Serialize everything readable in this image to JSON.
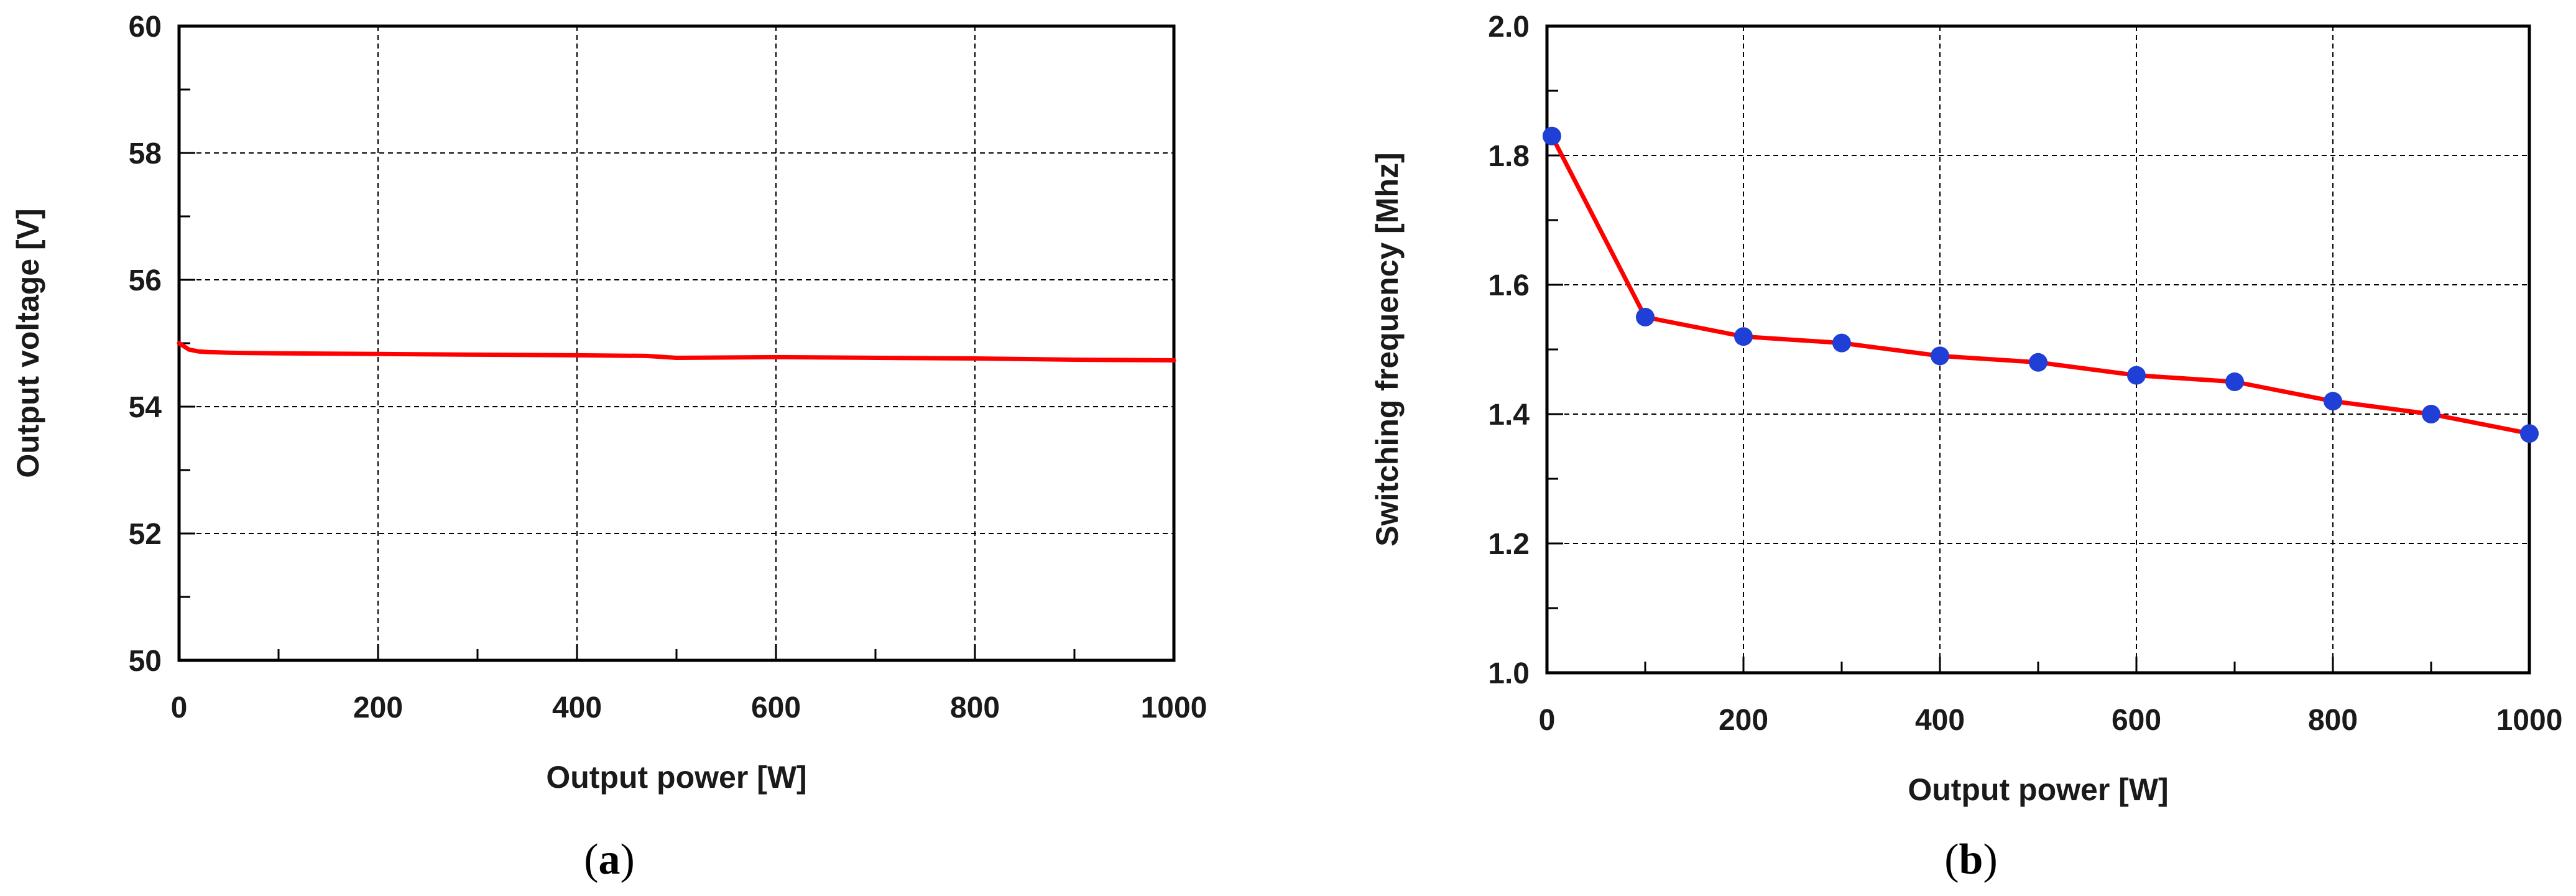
{
  "chart_data": [
    {
      "type": "line",
      "panel_label": "a",
      "xlabel": "Output power [W]",
      "ylabel": "Output voltage [V]",
      "xlim": [
        0,
        1000
      ],
      "ylim": [
        50,
        60
      ],
      "x_ticks": [
        0,
        200,
        400,
        600,
        800,
        1000
      ],
      "y_ticks": [
        50,
        52,
        54,
        56,
        58,
        60
      ],
      "grid": true,
      "markers": false,
      "series": [
        {
          "color": "#ff0000",
          "x": [
            0,
            5,
            10,
            20,
            30,
            50,
            100,
            200,
            300,
            400,
            470,
            500,
            600,
            700,
            800,
            900,
            1000
          ],
          "y": [
            55.0,
            54.95,
            54.9,
            54.87,
            54.86,
            54.85,
            54.84,
            54.83,
            54.82,
            54.81,
            54.8,
            54.77,
            54.78,
            54.77,
            54.76,
            54.74,
            54.73
          ]
        }
      ]
    },
    {
      "type": "line",
      "panel_label": "b",
      "xlabel": "Output power [W]",
      "ylabel": "Switching frequency [Mhz]",
      "xlim": [
        0,
        1000
      ],
      "ylim": [
        1.0,
        2.0
      ],
      "x_ticks": [
        0,
        200,
        400,
        600,
        800,
        1000
      ],
      "y_ticks": [
        1.0,
        1.2,
        1.4,
        1.6,
        1.8,
        2.0
      ],
      "y_tick_labels": [
        "1.0",
        "1.2",
        "1.4",
        "1.6",
        "1.8",
        "2.0"
      ],
      "grid": true,
      "markers": true,
      "series": [
        {
          "color": "#ff0000",
          "marker_color": "#1f3fd6",
          "x": [
            5,
            100,
            200,
            300,
            400,
            500,
            600,
            700,
            800,
            900,
            1000
          ],
          "y": [
            1.83,
            1.55,
            1.52,
            1.51,
            1.49,
            1.48,
            1.46,
            1.45,
            1.42,
            1.4,
            1.37
          ]
        }
      ]
    }
  ]
}
